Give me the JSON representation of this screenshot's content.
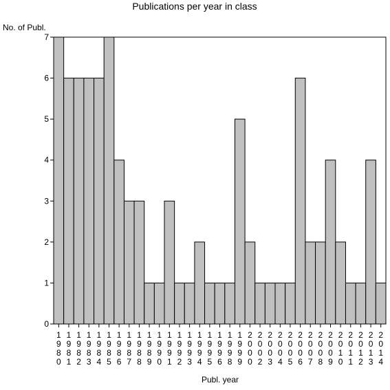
{
  "chart_data": {
    "type": "bar",
    "title": "Publications per year in class",
    "ylabel": "No. of Publ.",
    "xlabel": "Publ. year",
    "ylim": [
      0,
      7
    ],
    "yticks": [
      0,
      1,
      2,
      3,
      4,
      5,
      6,
      7
    ],
    "grid": false,
    "colors": {
      "bar_fill": "#c0c0c0",
      "bar_stroke": "#000000",
      "axis": "#000000",
      "background": "#ffffff"
    },
    "categories": [
      "1980",
      "1981",
      "1982",
      "1983",
      "1984",
      "1985",
      "1986",
      "1987",
      "1988",
      "1989",
      "1990",
      "1991",
      "1992",
      "1993",
      "1994",
      "1995",
      "1996",
      "1998",
      "1999",
      "2000",
      "2002",
      "2003",
      "2004",
      "2005",
      "2006",
      "2007",
      "2008",
      "2009",
      "2010",
      "2011",
      "2012",
      "2013",
      "2014"
    ],
    "values": [
      7,
      6,
      6,
      6,
      6,
      7,
      4,
      3,
      3,
      1,
      1,
      3,
      1,
      1,
      2,
      1,
      1,
      1,
      5,
      2,
      1,
      1,
      1,
      1,
      6,
      2,
      2,
      4,
      2,
      1,
      1,
      4,
      1
    ]
  }
}
